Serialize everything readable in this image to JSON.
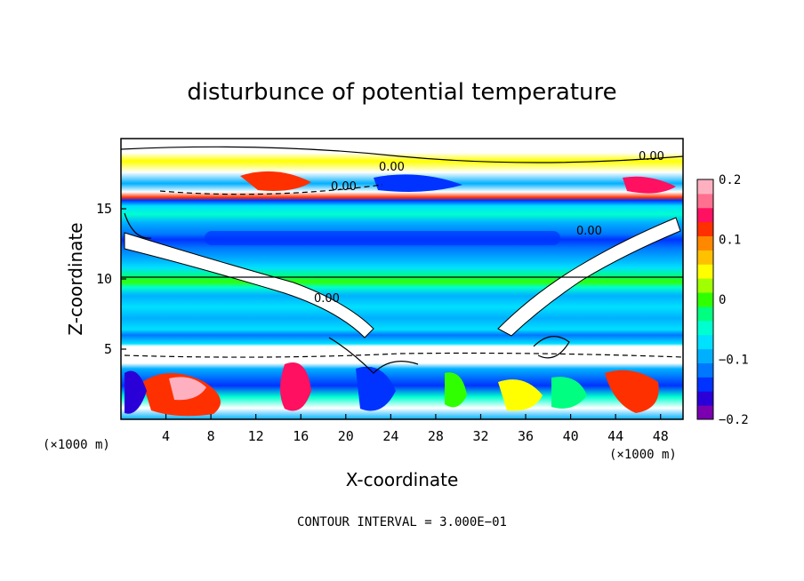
{
  "chart_data": {
    "type": "heatmap",
    "title": "disturbunce of potential temperature",
    "xlabel": "X-coordinate",
    "ylabel": "Z-coordinate",
    "x_unit": "(×1000 m)",
    "x_unit_right": "(×1000 m)",
    "xlim": [
      0,
      50
    ],
    "ylim": [
      0,
      20
    ],
    "x_ticks": [
      "4",
      "8",
      "12",
      "16",
      "20",
      "24",
      "28",
      "32",
      "36",
      "40",
      "44",
      "48"
    ],
    "y_ticks": [
      "5",
      "10",
      "15"
    ],
    "colorbar": {
      "range": [
        -0.2,
        0.2
      ],
      "tick_labels": [
        "0.2",
        "0.1",
        "0",
        "−0.1",
        "−0.2"
      ],
      "colors": [
        "#7a00b0",
        "#2a00d8",
        "#0033ff",
        "#0077ff",
        "#00b0ff",
        "#00e0ff",
        "#00ffd0",
        "#00ff80",
        "#30ff00",
        "#a0ff00",
        "#ffff00",
        "#ffc000",
        "#ff8800",
        "#ff3000",
        "#ff1060",
        "#ff7090",
        "#ffb0c0"
      ]
    },
    "contour_labels": [
      "0.00",
      "0.00",
      "0.00",
      "0.00",
      "0.00"
    ],
    "contour_interval_text": "CONTOUR INTERVAL = 3.000E−01",
    "description_bands": [
      {
        "z": [
          0,
          4.3
        ],
        "character": "mixed anomalies (-0.2 to 0.2)"
      },
      {
        "z": [
          4.3,
          5.5
        ],
        "character": "white band near 0"
      },
      {
        "z": [
          5.5,
          15.5
        ],
        "character": "stratified cool anomaly (~-0.05 to -0.15)"
      },
      {
        "z": [
          15.5,
          20
        ],
        "character": "mixed anomalies"
      }
    ]
  }
}
